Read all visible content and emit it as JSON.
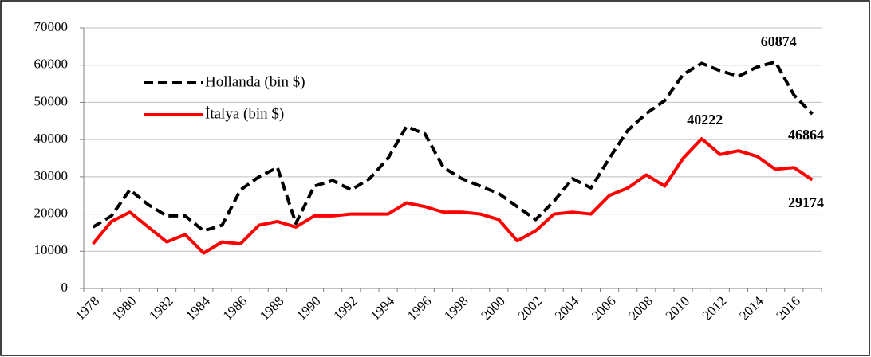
{
  "chart_data": {
    "type": "line",
    "categories": [
      "1978",
      null,
      "1980",
      null,
      "1982",
      null,
      "1984",
      null,
      "1986",
      null,
      "1988",
      null,
      "1990",
      null,
      "1992",
      null,
      "1994",
      null,
      "1996",
      null,
      "1998",
      null,
      "2000",
      null,
      "2002",
      null,
      "2004",
      null,
      "2006",
      null,
      "2008",
      null,
      "2010",
      null,
      "2012",
      null,
      "2014",
      null,
      "2016",
      null
    ],
    "series": [
      {
        "name": "Hollanda (bin $)",
        "color": "#000000",
        "dashed": true,
        "label_indices": [
          37,
          39
        ],
        "values": [
          16500,
          19500,
          26500,
          22500,
          19500,
          19500,
          15500,
          17000,
          26500,
          30000,
          32500,
          17500,
          27500,
          29000,
          26500,
          29500,
          35000,
          43500,
          41500,
          32500,
          29500,
          27500,
          25500,
          22000,
          18500,
          23500,
          29500,
          27000,
          35000,
          42500,
          47000,
          50500,
          57500,
          60500,
          58500,
          57000,
          59500,
          60874,
          52000,
          46864
        ]
      },
      {
        "name": "İtalya (bin $)",
        "color": "#ff0000",
        "dashed": false,
        "label_indices": [
          33,
          39
        ],
        "values": [
          12000,
          18000,
          20500,
          16500,
          12500,
          14500,
          9500,
          12500,
          12000,
          17000,
          18000,
          16500,
          19500,
          19500,
          20000,
          20000,
          20000,
          23000,
          22000,
          20500,
          20500,
          20000,
          18500,
          12800,
          15500,
          20000,
          20500,
          20000,
          25000,
          27000,
          30500,
          27500,
          35000,
          40222,
          36000,
          37000,
          35500,
          32000,
          32500,
          29174
        ]
      }
    ],
    "ylim": [
      0,
      70000
    ],
    "yticks": [
      0,
      10000,
      20000,
      30000,
      40000,
      50000,
      60000,
      70000
    ],
    "grid": true,
    "legend": "top-left"
  }
}
